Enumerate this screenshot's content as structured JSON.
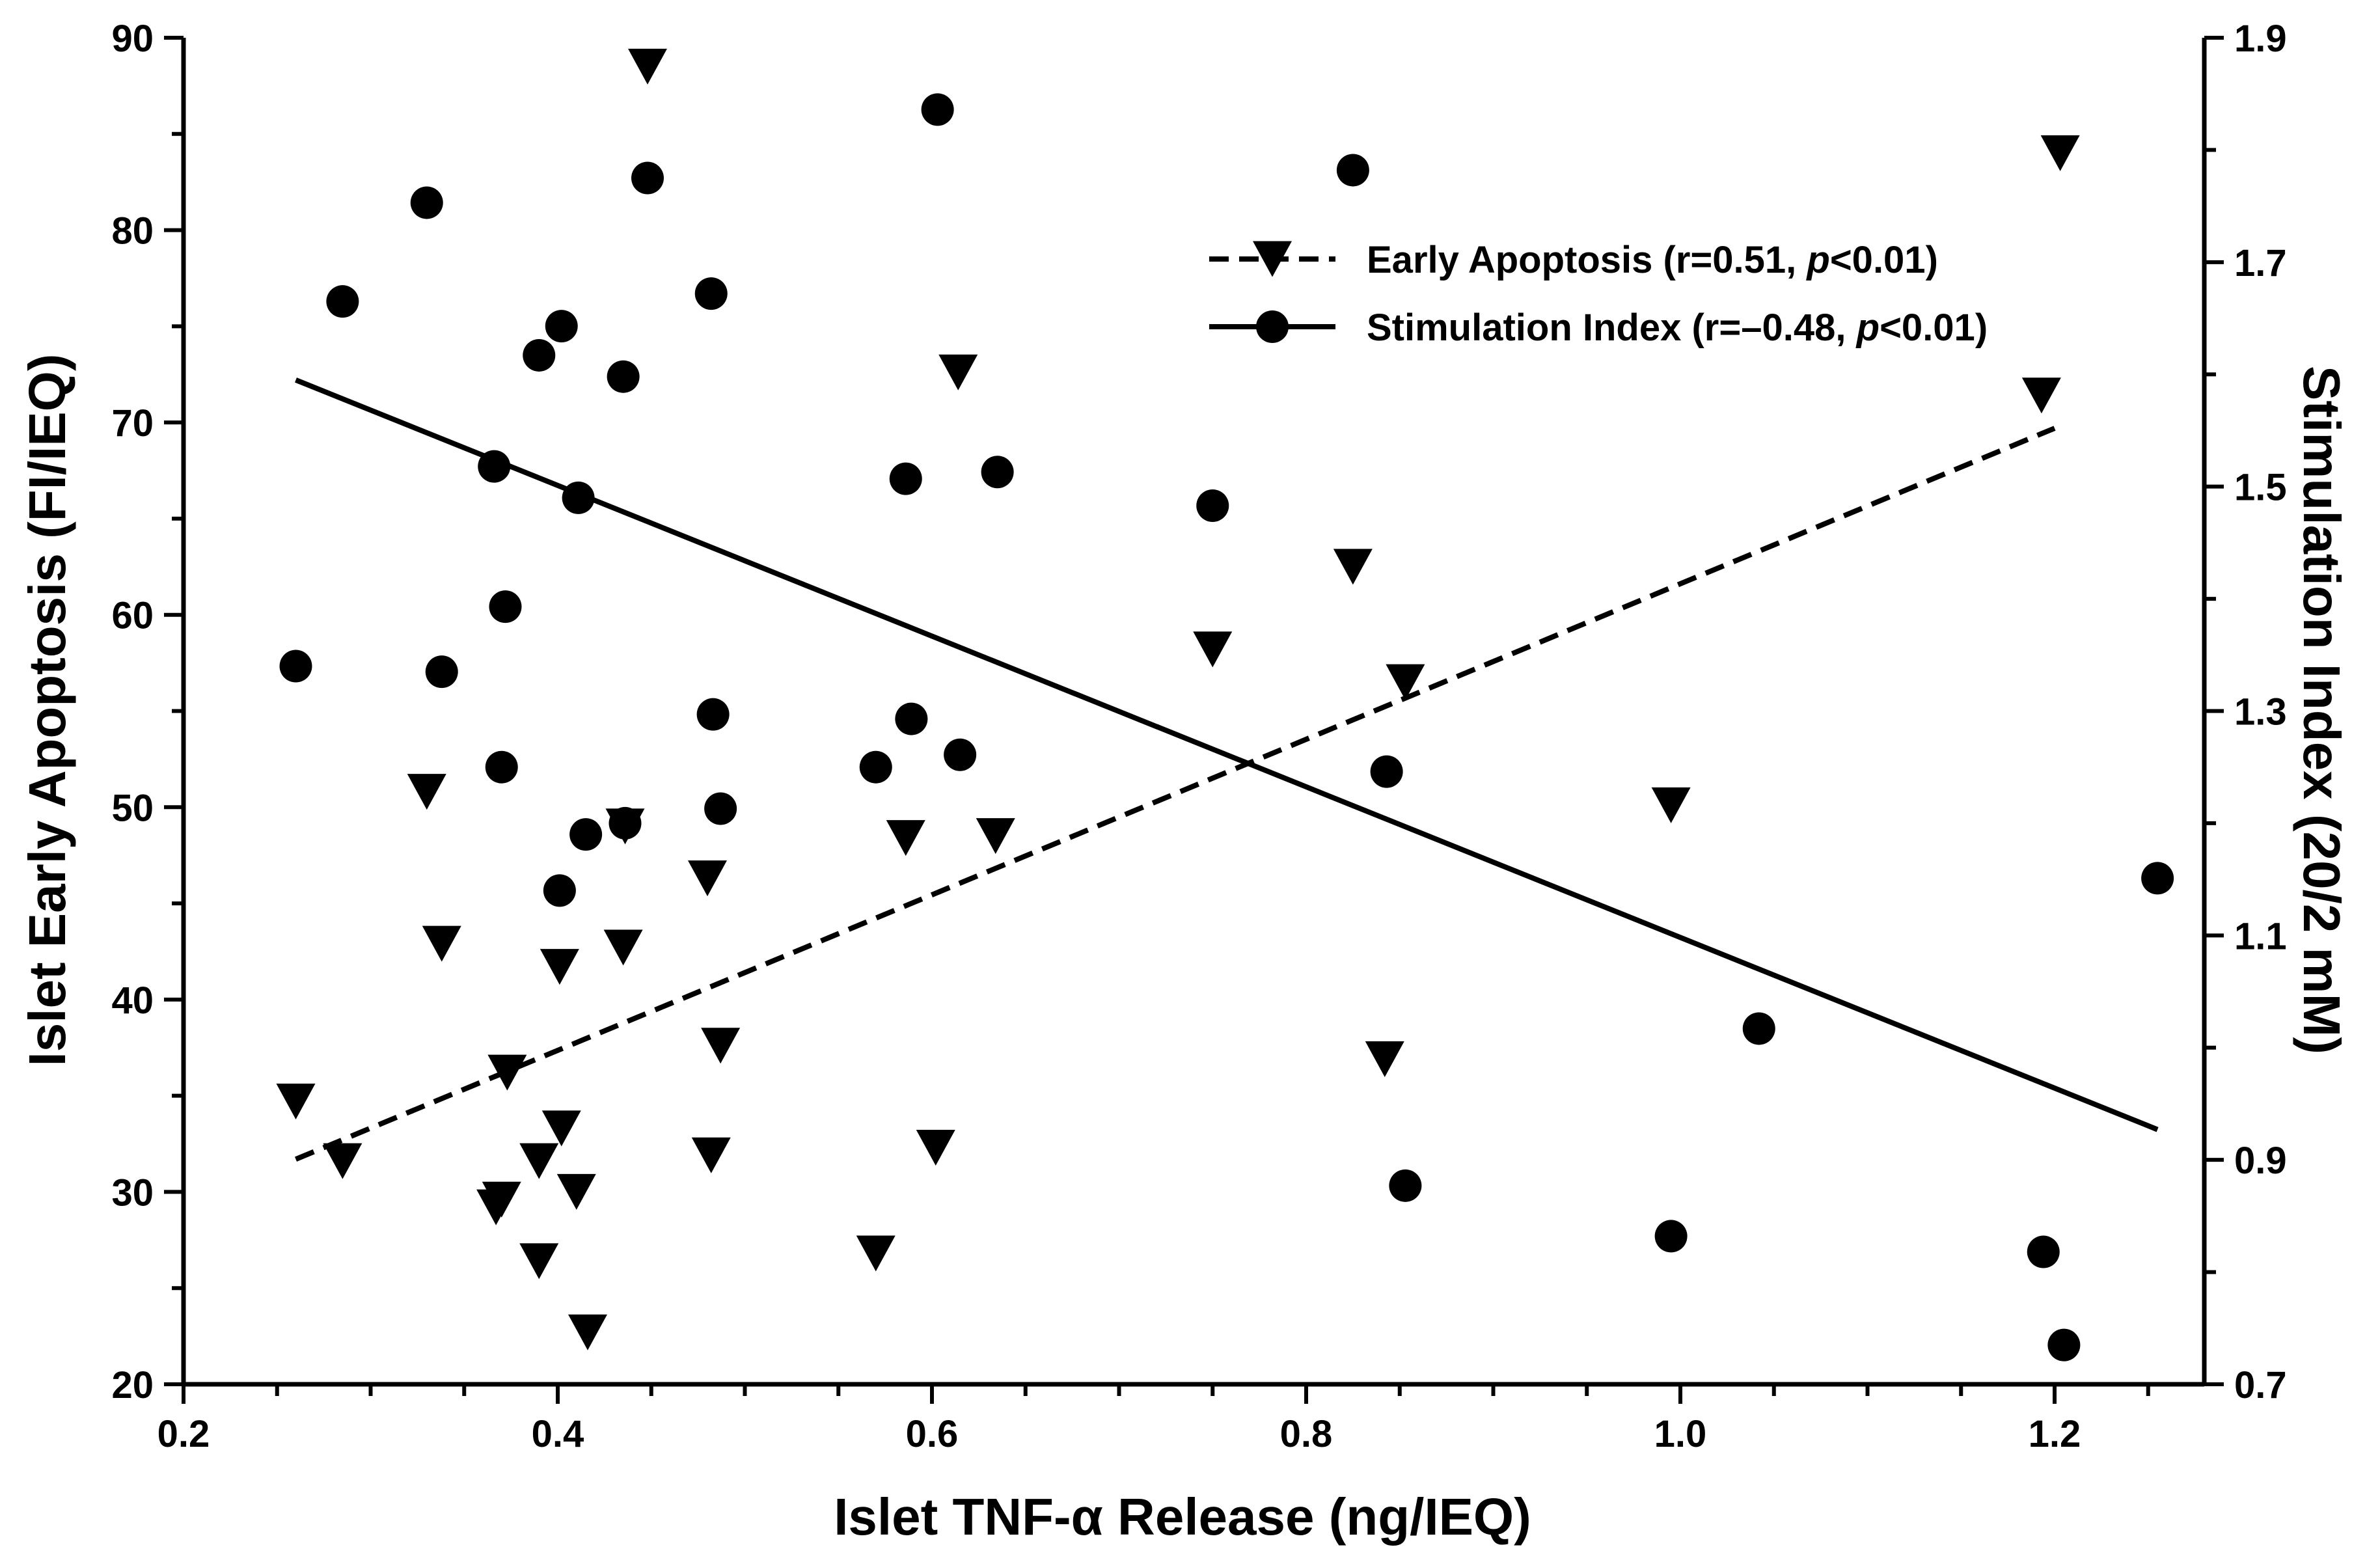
{
  "chart_data": {
    "type": "scatter",
    "title": "",
    "xlabel": "Islet TNF-α Release (ng/IEQ)",
    "ylabel": "Islet Early Apoptosis (FI/IEQ)",
    "y2label": "Stimulation Index (20/2 mM)",
    "xlim": [
      0.2,
      1.28
    ],
    "ylim": [
      20,
      90
    ],
    "y2lim": [
      0.7,
      1.9
    ],
    "x_ticks": [
      "0.2",
      "0.4",
      "0.6",
      "0.8",
      "1.0",
      "1.2"
    ],
    "y_ticks": [
      "20",
      "30",
      "40",
      "50",
      "60",
      "70",
      "80",
      "90"
    ],
    "y2_ticks": [
      "0.7",
      "0.9",
      "1.1",
      "1.3",
      "1.5",
      "1.7",
      "1.9"
    ],
    "grid": false,
    "legend_position": "top-right",
    "legend": [
      {
        "series": "apoptosis",
        "label_main": "Early Apoptosis (r=0.51, ",
        "label_p": "p",
        "label_tail": "<0.01)"
      },
      {
        "series": "stimulation",
        "label_main": "Stimulation Index (r=–0.48, ",
        "label_p": "p",
        "label_tail": "<0.01)"
      }
    ],
    "series": [
      {
        "name": "Early Apoptosis",
        "key": "apoptosis",
        "axis": "left",
        "marker": "triangle-down",
        "color": "#000000",
        "fit_line": {
          "style": "dashed",
          "x": [
            0.26,
            1.2
          ],
          "y": [
            31.7,
            69.7
          ]
        },
        "points": [
          [
            0.26,
            34.7
          ],
          [
            0.285,
            31.6
          ],
          [
            0.33,
            50.8
          ],
          [
            0.338,
            42.9
          ],
          [
            0.367,
            29.2
          ],
          [
            0.37,
            29.6
          ],
          [
            0.373,
            36.2
          ],
          [
            0.39,
            26.4
          ],
          [
            0.39,
            31.6
          ],
          [
            0.401,
            41.7
          ],
          [
            0.402,
            33.3
          ],
          [
            0.41,
            30.0
          ],
          [
            0.416,
            22.7
          ],
          [
            0.435,
            42.7
          ],
          [
            0.436,
            49.0
          ],
          [
            0.448,
            88.5
          ],
          [
            0.48,
            46.3
          ],
          [
            0.482,
            31.9
          ],
          [
            0.487,
            37.6
          ],
          [
            0.57,
            26.8
          ],
          [
            0.586,
            48.4
          ],
          [
            0.602,
            32.3
          ],
          [
            0.614,
            72.6
          ],
          [
            0.634,
            48.5
          ],
          [
            0.75,
            58.2
          ],
          [
            0.825,
            62.5
          ],
          [
            0.842,
            36.9
          ],
          [
            0.853,
            56.5
          ],
          [
            0.995,
            50.1
          ],
          [
            1.193,
            71.4
          ],
          [
            1.203,
            84.0
          ]
        ]
      },
      {
        "name": "Stimulation Index",
        "key": "stimulation",
        "axis": "right",
        "marker": "circle",
        "color": "#000000",
        "fit_line": {
          "style": "solid",
          "x": [
            0.26,
            1.255
          ],
          "y": [
            1.595,
            0.927
          ]
        },
        "points": [
          [
            0.26,
            1.34
          ],
          [
            0.285,
            1.665
          ],
          [
            0.33,
            1.753
          ],
          [
            0.338,
            1.335
          ],
          [
            0.366,
            1.518
          ],
          [
            0.37,
            1.25
          ],
          [
            0.372,
            1.393
          ],
          [
            0.39,
            1.617
          ],
          [
            0.401,
            1.14
          ],
          [
            0.402,
            1.643
          ],
          [
            0.411,
            1.49
          ],
          [
            0.415,
            1.19
          ],
          [
            0.435,
            1.598
          ],
          [
            0.436,
            1.2
          ],
          [
            0.448,
            1.775
          ],
          [
            0.482,
            1.672
          ],
          [
            0.483,
            1.297
          ],
          [
            0.487,
            1.213
          ],
          [
            0.57,
            1.25
          ],
          [
            0.586,
            1.507
          ],
          [
            0.589,
            1.293
          ],
          [
            0.603,
            1.836
          ],
          [
            0.615,
            1.261
          ],
          [
            0.635,
            1.513
          ],
          [
            0.75,
            1.483
          ],
          [
            0.825,
            1.782
          ],
          [
            0.843,
            1.246
          ],
          [
            0.853,
            0.877
          ],
          [
            0.995,
            0.832
          ],
          [
            1.042,
            1.017
          ],
          [
            1.194,
            0.818
          ],
          [
            1.205,
            0.735
          ],
          [
            1.255,
            1.151
          ]
        ]
      }
    ]
  }
}
